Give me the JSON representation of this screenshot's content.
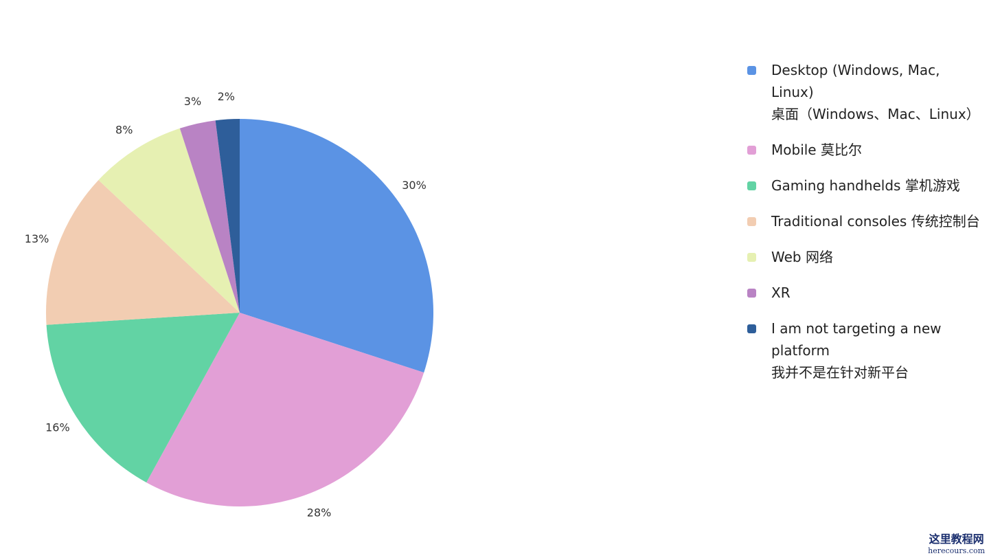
{
  "chart_data": {
    "type": "pie",
    "categories": [
      "Desktop (Windows, Mac, Linux)\n桌面（Windows、Mac、Linux）",
      "Mobile  莫比尔",
      "Gaming handhelds  掌机游戏",
      "Traditional consoles  传统控制台",
      "Web  网络",
      "XR",
      "I am not targeting a new platform\n我并不是在针对新平台"
    ],
    "values": [
      30,
      28,
      16,
      13,
      8,
      3,
      2
    ],
    "value_labels": [
      "30%",
      "28%",
      "16%",
      "13%",
      "8%",
      "3%",
      "2%"
    ],
    "colors": [
      "#5b93e4",
      "#e29fd6",
      "#62d3a4",
      "#f2cdb2",
      "#e6f0b2",
      "#b983c4",
      "#2e5e9a"
    ],
    "legend": "right"
  },
  "watermark": {
    "title": "这里教程网",
    "url": "herecours.com"
  }
}
